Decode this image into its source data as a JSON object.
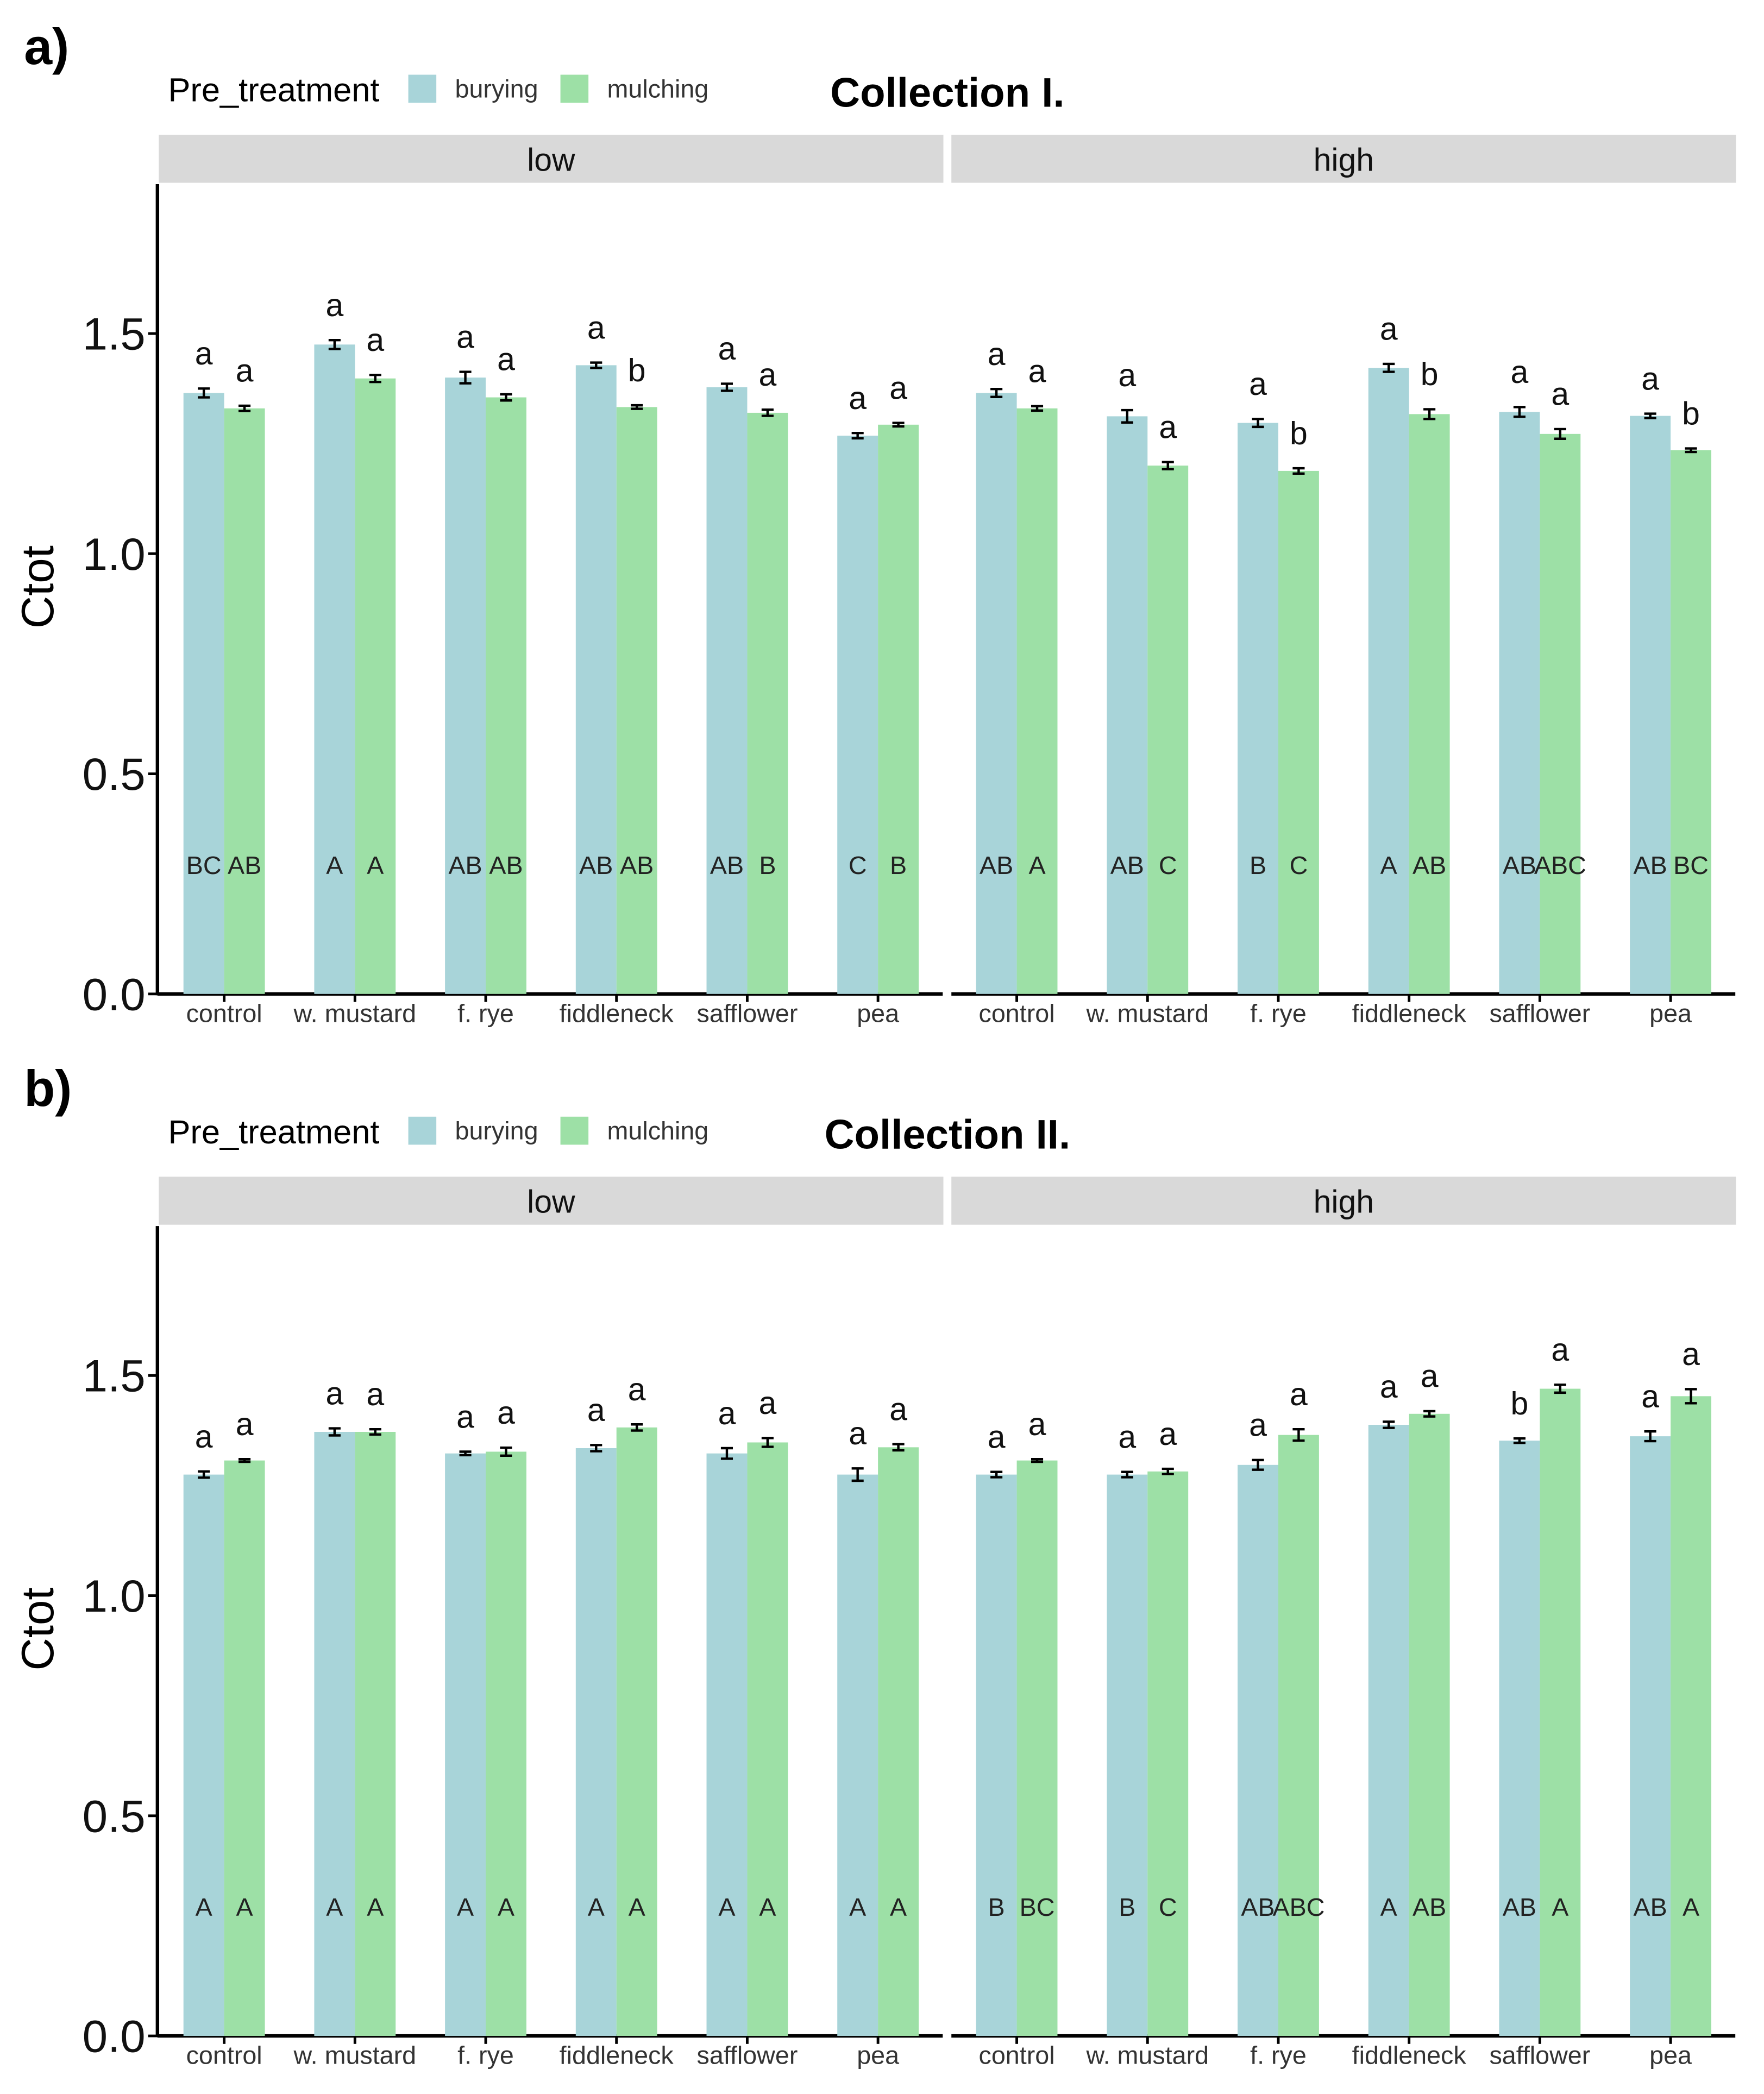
{
  "legend": {
    "title": "Pre_treatment",
    "items": [
      {
        "label": "burying",
        "color": "#a8d4d9"
      },
      {
        "label": "mulching",
        "color": "#9de0a6"
      }
    ]
  },
  "colors": {
    "burying": "#a8d4d9",
    "mulching": "#9de0a6",
    "strip": "#d9d9d9"
  },
  "chart_data": [
    {
      "type": "bar",
      "panel_label": "a)",
      "title": "Collection I.",
      "ylabel": "Ctot",
      "xlabel": "",
      "ylim": [
        0,
        1.85
      ],
      "yticks": [
        "0.0",
        "0.5",
        "1.0",
        "1.5"
      ],
      "facets": [
        {
          "label": "low",
          "categories": [
            "control",
            "w. mustard",
            "f. rye",
            "fiddleneck",
            "safflower",
            "pea"
          ],
          "series": [
            {
              "name": "burying",
              "values": [
                1.365,
                1.475,
                1.4,
                1.428,
                1.378,
                1.268
              ],
              "errors": [
                0.01,
                0.01,
                0.013,
                0.006,
                0.008,
                0.006
              ]
            },
            {
              "name": "mulching",
              "values": [
                1.33,
                1.398,
                1.355,
                1.333,
                1.32,
                1.293
              ],
              "errors": [
                0.006,
                0.008,
                0.007,
                0.004,
                0.007,
                0.004
              ]
            }
          ],
          "top_letters": [
            [
              "a",
              "a"
            ],
            [
              "a",
              "a"
            ],
            [
              "a",
              "a"
            ],
            [
              "a",
              "b"
            ],
            [
              "a",
              "a"
            ],
            [
              "a",
              "a"
            ]
          ],
          "bottom_letters": [
            [
              "BC",
              "AB"
            ],
            [
              "A",
              "A"
            ],
            [
              "AB",
              "AB"
            ],
            [
              "AB",
              "AB"
            ],
            [
              "AB",
              "B"
            ],
            [
              "C",
              "B"
            ]
          ]
        },
        {
          "label": "high",
          "categories": [
            "control",
            "w. mustard",
            "f. rye",
            "fiddleneck",
            "safflower",
            "pea"
          ],
          "series": [
            {
              "name": "burying",
              "values": [
                1.365,
                1.312,
                1.297,
                1.422,
                1.322,
                1.313
              ],
              "errors": [
                0.009,
                0.014,
                0.009,
                0.009,
                0.011,
                0.005
              ]
            },
            {
              "name": "mulching",
              "values": [
                1.33,
                1.2,
                1.188,
                1.317,
                1.272,
                1.235
              ],
              "errors": [
                0.005,
                0.008,
                0.006,
                0.011,
                0.011,
                0.004
              ]
            }
          ],
          "top_letters": [
            [
              "a",
              "a"
            ],
            [
              "a",
              "a"
            ],
            [
              "a",
              "b"
            ],
            [
              "a",
              "b"
            ],
            [
              "a",
              "a"
            ],
            [
              "a",
              "b"
            ]
          ],
          "bottom_letters": [
            [
              "AB",
              "A"
            ],
            [
              "AB",
              "C"
            ],
            [
              "B",
              "C"
            ],
            [
              "A",
              "AB"
            ],
            [
              "AB",
              "ABC"
            ],
            [
              "AB",
              "BC"
            ]
          ]
        }
      ]
    },
    {
      "type": "bar",
      "panel_label": "b)",
      "title": "Collection II.",
      "ylabel": "Ctot",
      "xlabel": "",
      "ylim": [
        0,
        1.85
      ],
      "yticks": [
        "0.0",
        "0.5",
        "1.0",
        "1.5"
      ],
      "facets": [
        {
          "label": "low",
          "categories": [
            "control",
            "w. mustard",
            "f. rye",
            "fiddleneck",
            "safflower",
            "pea"
          ],
          "series": [
            {
              "name": "burying",
              "values": [
                1.275,
                1.372,
                1.323,
                1.335,
                1.323,
                1.275
              ],
              "errors": [
                0.007,
                0.008,
                0.004,
                0.007,
                0.012,
                0.014
              ]
            },
            {
              "name": "mulching",
              "values": [
                1.307,
                1.372,
                1.327,
                1.382,
                1.348,
                1.337
              ],
              "errors": [
                0.003,
                0.006,
                0.009,
                0.007,
                0.01,
                0.007
              ]
            }
          ],
          "top_letters": [
            [
              "a",
              "a"
            ],
            [
              "a",
              "a"
            ],
            [
              "a",
              "a"
            ],
            [
              "a",
              "a"
            ],
            [
              "a",
              "a"
            ],
            [
              "a",
              "a"
            ]
          ],
          "bottom_letters": [
            [
              "A",
              "A"
            ],
            [
              "A",
              "A"
            ],
            [
              "A",
              "A"
            ],
            [
              "A",
              "A"
            ],
            [
              "A",
              "A"
            ],
            [
              "A",
              "A"
            ]
          ]
        },
        {
          "label": "high",
          "categories": [
            "control",
            "w. mustard",
            "f. rye",
            "fiddleneck",
            "safflower",
            "pea"
          ],
          "series": [
            {
              "name": "burying",
              "values": [
                1.275,
                1.275,
                1.297,
                1.388,
                1.352,
                1.362
              ],
              "errors": [
                0.006,
                0.006,
                0.011,
                0.007,
                0.005,
                0.011
              ]
            },
            {
              "name": "mulching",
              "values": [
                1.307,
                1.282,
                1.365,
                1.413,
                1.47,
                1.453
              ],
              "errors": [
                0.003,
                0.006,
                0.013,
                0.006,
                0.009,
                0.016
              ]
            }
          ],
          "top_letters": [
            [
              "a",
              "a"
            ],
            [
              "a",
              "a"
            ],
            [
              "a",
              "a"
            ],
            [
              "a",
              "a"
            ],
            [
              "b",
              "a"
            ],
            [
              "a",
              "a"
            ]
          ],
          "bottom_letters": [
            [
              "B",
              "BC"
            ],
            [
              "B",
              "C"
            ],
            [
              "AB",
              "ABC"
            ],
            [
              "A",
              "AB"
            ],
            [
              "AB",
              "A"
            ],
            [
              "AB",
              "A"
            ]
          ]
        }
      ]
    }
  ]
}
